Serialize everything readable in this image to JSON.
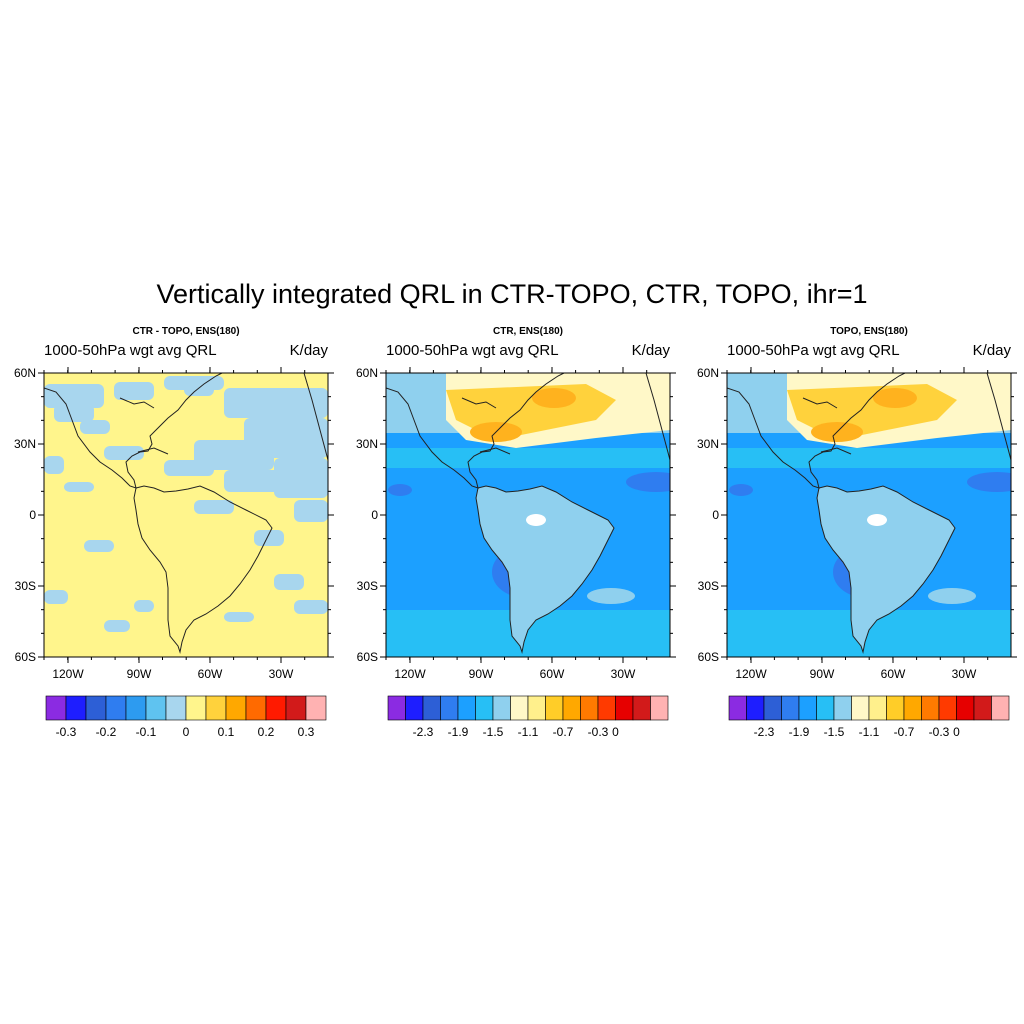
{
  "figure": {
    "title": "Vertically integrated QRL in CTR-TOPO, CTR, TOPO, ihr=1"
  },
  "panels": [
    {
      "id": "ctr-topo",
      "title": "CTR - TOPO, ENS(180)",
      "left_label": "1000-50hPa wgt avg QRL",
      "right_label": "K/day",
      "field": "difference",
      "colorbar": {
        "colors": [
          "#8b2be2",
          "#1e1eff",
          "#2d5fd6",
          "#2f7df0",
          "#2d9bf0",
          "#5fc3f0",
          "#a8d6ee",
          "#fff58c",
          "#ffd23c",
          "#ffa800",
          "#ff6a00",
          "#ff1a00",
          "#d21a1a",
          "#ffb2b2"
        ],
        "labels": [
          "-0.3",
          "-0.2",
          "-0.1",
          "0",
          "0.1",
          "0.2",
          "0.3"
        ],
        "label_at_boundaries": [
          1,
          3,
          5,
          7,
          9,
          11,
          13
        ]
      }
    },
    {
      "id": "ctr",
      "title": "CTR, ENS(180)",
      "left_label": "1000-50hPa wgt avg QRL",
      "right_label": "K/day",
      "field": "full",
      "colorbar": {
        "colors": [
          "#8b2be2",
          "#1e1eff",
          "#2d5fd6",
          "#2f7df0",
          "#1ca0ff",
          "#27bff5",
          "#8fd0ee",
          "#fff8c8",
          "#fff08c",
          "#ffcd28",
          "#ffa800",
          "#ff7a00",
          "#ff3a00",
          "#e60000",
          "#d21a1a",
          "#ffb2b2"
        ],
        "labels": [
          "-2.3",
          "-1.9",
          "-1.5",
          "-1.1",
          "-0.7",
          "-0.3",
          "0"
        ],
        "label_at_boundaries": [
          2,
          4,
          6,
          8,
          10,
          12,
          13
        ]
      }
    },
    {
      "id": "topo",
      "title": "TOPO, ENS(180)",
      "left_label": "1000-50hPa wgt avg QRL",
      "right_label": "K/day",
      "field": "full",
      "colorbar": {
        "colors": [
          "#8b2be2",
          "#1e1eff",
          "#2d5fd6",
          "#2f7df0",
          "#1ca0ff",
          "#27bff5",
          "#8fd0ee",
          "#fff8c8",
          "#fff08c",
          "#ffcd28",
          "#ffa800",
          "#ff7a00",
          "#ff3a00",
          "#e60000",
          "#d21a1a",
          "#ffb2b2"
        ],
        "labels": [
          "-2.3",
          "-1.9",
          "-1.5",
          "-1.1",
          "-0.7",
          "-0.3",
          "0"
        ],
        "label_at_boundaries": [
          2,
          4,
          6,
          8,
          10,
          12,
          13
        ]
      }
    }
  ],
  "axes": {
    "lat_ticks": [
      "60N",
      "30N",
      "0",
      "30S",
      "60S"
    ],
    "lon_ticks": [
      "120W",
      "90W",
      "60W",
      "30W"
    ]
  },
  "map_colors": {
    "diff_base": "#fff58c",
    "diff_patch": "#a8d6ee",
    "full_bands": [
      "#fff8c8",
      "#fff08c",
      "#ffd23c",
      "#ffb21e",
      "#8fd0ee",
      "#27bff5",
      "#1ca0ff",
      "#2f7df0"
    ]
  }
}
